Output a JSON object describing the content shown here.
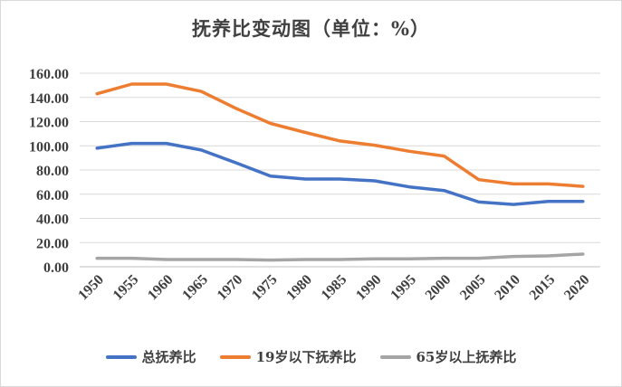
{
  "chart_data": {
    "type": "line",
    "title": "抚养比变动图（单位：%）",
    "x": [
      "1950",
      "1955",
      "1960",
      "1965",
      "1970",
      "1975",
      "1980",
      "1985",
      "1990",
      "1995",
      "2000",
      "2005",
      "2010",
      "2015",
      "2020"
    ],
    "ylim": [
      0,
      160
    ],
    "yticks": [
      "0.00",
      "20.00",
      "40.00",
      "60.00",
      "80.00",
      "100.00",
      "120.00",
      "140.00",
      "160.00"
    ],
    "grid": true,
    "legend_position": "bottom",
    "series": [
      {
        "name": "总抚养比",
        "color": "#4472c4",
        "values": [
          98,
          102,
          102,
          96.5,
          86,
          75,
          72.5,
          72.5,
          71,
          66,
          63,
          53.5,
          51.5,
          54,
          54
        ]
      },
      {
        "name": "19岁以下抚养比",
        "color": "#ed7d31",
        "values": [
          143,
          151,
          151,
          145,
          131,
          118.5,
          111,
          104,
          100.5,
          95.5,
          91.5,
          72,
          68.5,
          68.5,
          66.5
        ]
      },
      {
        "name": "65岁以上抚养比",
        "color": "#a5a5a5",
        "values": [
          7,
          7,
          6,
          6,
          6,
          5.5,
          6,
          6,
          6.5,
          6.5,
          7,
          7,
          8.5,
          9,
          10.5
        ]
      }
    ]
  }
}
